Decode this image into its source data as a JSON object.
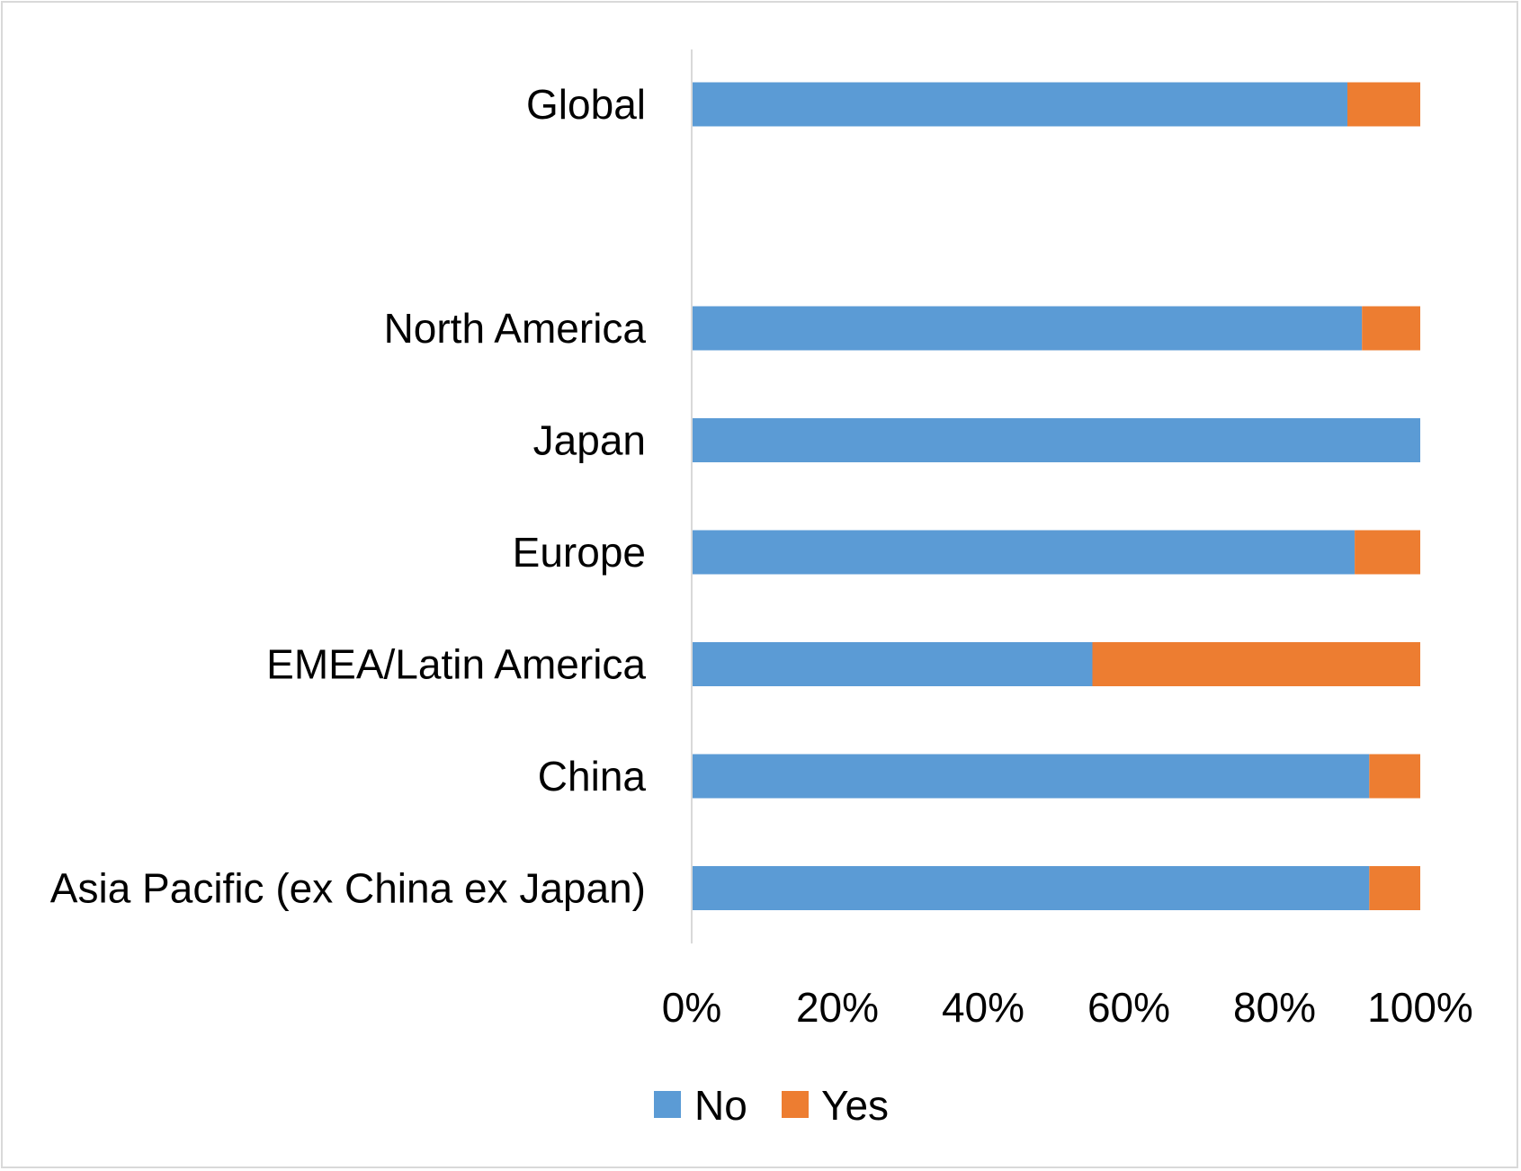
{
  "chart_data": {
    "type": "bar",
    "orientation": "horizontal",
    "stacking": "percent",
    "title": "",
    "xlabel": "",
    "ylabel": "",
    "xlim": [
      0,
      100
    ],
    "x_ticks": [
      "0%",
      "20%",
      "40%",
      "60%",
      "80%",
      "100%"
    ],
    "categories": [
      "Global",
      "",
      "North America",
      "Japan",
      "Europe",
      "EMEA/Latin America",
      "China",
      "Asia Pacific (ex China ex Japan)"
    ],
    "series": [
      {
        "name": "No",
        "color": "#5b9bd5",
        "values": [
          90,
          null,
          92,
          100,
          91,
          55,
          93,
          93
        ]
      },
      {
        "name": "Yes",
        "color": "#ed7d31",
        "values": [
          10,
          null,
          8,
          0,
          9,
          45,
          7,
          7
        ]
      }
    ],
    "grid": false,
    "legend_position": "bottom"
  }
}
